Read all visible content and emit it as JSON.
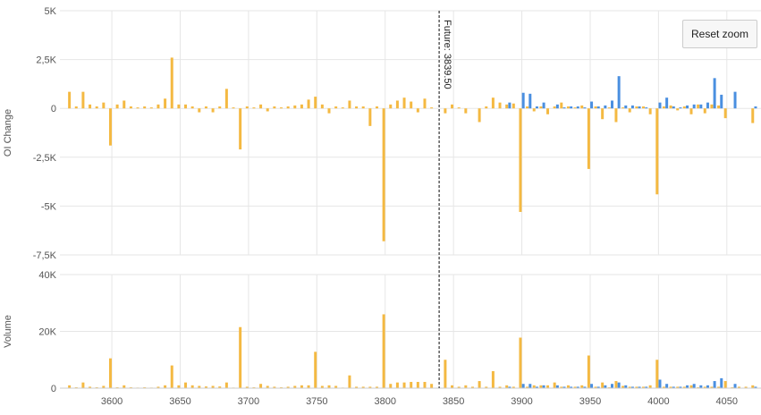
{
  "reset_zoom_label": "Reset zoom",
  "future_label": "Future: 3839.50",
  "colors": {
    "calls": "#f4b942",
    "puts": "#4a8fe0",
    "grid": "#e6e6e6",
    "marker": "#333333"
  },
  "chart_data": [
    {
      "type": "bar",
      "ylabel": "OI Change",
      "ylim": [
        -7500,
        5000
      ],
      "yticks": [
        -7500,
        -5000,
        -2500,
        0,
        2500,
        5000
      ],
      "ytick_labels": [
        "-7,5K",
        "-5K",
        "-2,5K",
        "0",
        "2,5K",
        "5K"
      ],
      "x": [
        3570,
        3575,
        3580,
        3585,
        3590,
        3595,
        3600,
        3605,
        3610,
        3615,
        3620,
        3625,
        3630,
        3635,
        3640,
        3645,
        3650,
        3655,
        3660,
        3665,
        3670,
        3675,
        3680,
        3685,
        3690,
        3695,
        3700,
        3705,
        3710,
        3715,
        3720,
        3725,
        3730,
        3735,
        3740,
        3745,
        3750,
        3755,
        3760,
        3765,
        3770,
        3775,
        3780,
        3785,
        3790,
        3795,
        3800,
        3805,
        3810,
        3815,
        3820,
        3825,
        3830,
        3835,
        3845,
        3850,
        3855,
        3860,
        3865,
        3870,
        3875,
        3880,
        3885,
        3890,
        3895,
        3900,
        3905,
        3910,
        3915,
        3920,
        3925,
        3930,
        3935,
        3940,
        3945,
        3950,
        3955,
        3960,
        3965,
        3970,
        3975,
        3980,
        3985,
        3990,
        3995,
        4000,
        4005,
        4010,
        4015,
        4020,
        4025,
        4030,
        4035,
        4040,
        4045,
        4050,
        4055,
        4060,
        4065,
        4070
      ],
      "series": [
        {
          "values": [
            850,
            100,
            850,
            200,
            100,
            300,
            -1900,
            200,
            400,
            100,
            50,
            100,
            50,
            200,
            500,
            2600,
            200,
            200,
            100,
            -200,
            100,
            -200,
            100,
            1000,
            50,
            -2100,
            100,
            50,
            200,
            -150,
            100,
            50,
            100,
            150,
            200,
            450,
            600,
            200,
            -250,
            100,
            50,
            400,
            100,
            100,
            -900,
            100,
            -6800,
            200,
            400,
            550,
            350,
            -200,
            500,
            50,
            -250,
            200,
            50,
            -250,
            0,
            -700,
            100,
            550,
            300,
            200,
            250,
            -5300,
            100,
            -150,
            100,
            -300,
            100,
            300,
            100,
            50,
            150,
            -3100,
            100,
            -550,
            50,
            -700,
            50,
            -200,
            100,
            100,
            -300,
            -4400,
            100,
            150,
            -100,
            100,
            -300,
            200,
            -250,
            200,
            150,
            -500,
            0,
            0,
            0,
            -750
          ]
        },
        {
          "values": [
            0,
            0,
            0,
            0,
            0,
            0,
            0,
            0,
            0,
            0,
            0,
            0,
            0,
            0,
            0,
            0,
            0,
            0,
            0,
            0,
            0,
            0,
            0,
            0,
            0,
            0,
            0,
            0,
            0,
            0,
            0,
            0,
            0,
            0,
            0,
            0,
            0,
            0,
            0,
            0,
            0,
            0,
            0,
            0,
            0,
            0,
            0,
            0,
            0,
            0,
            0,
            0,
            0,
            0,
            0,
            0,
            0,
            0,
            0,
            0,
            0,
            0,
            0,
            300,
            0,
            800,
            750,
            100,
            300,
            0,
            200,
            50,
            100,
            100,
            50,
            350,
            100,
            150,
            400,
            1650,
            150,
            150,
            100,
            50,
            0,
            300,
            550,
            100,
            50,
            150,
            200,
            200,
            300,
            1550,
            700,
            0,
            850,
            0,
            0,
            100
          ]
        }
      ]
    },
    {
      "type": "bar",
      "ylabel": "Volume",
      "ylim": [
        0,
        40000
      ],
      "yticks": [
        0,
        20000,
        40000
      ],
      "ytick_labels": [
        "0",
        "20K",
        "40K"
      ],
      "xticks": [
        3600,
        3650,
        3700,
        3750,
        3800,
        3850,
        3900,
        3950,
        4000,
        4050
      ],
      "xtick_labels": [
        "3600",
        "3650",
        "3700",
        "3750",
        "3800",
        "3850",
        "3900",
        "3950",
        "4000",
        "4050"
      ],
      "x": [
        3570,
        3575,
        3580,
        3585,
        3590,
        3595,
        3600,
        3605,
        3610,
        3615,
        3620,
        3625,
        3630,
        3635,
        3640,
        3645,
        3650,
        3655,
        3660,
        3665,
        3670,
        3675,
        3680,
        3685,
        3690,
        3695,
        3700,
        3705,
        3710,
        3715,
        3720,
        3725,
        3730,
        3735,
        3740,
        3745,
        3750,
        3755,
        3760,
        3765,
        3770,
        3775,
        3780,
        3785,
        3790,
        3795,
        3800,
        3805,
        3810,
        3815,
        3820,
        3825,
        3830,
        3835,
        3845,
        3850,
        3855,
        3860,
        3865,
        3870,
        3875,
        3880,
        3885,
        3890,
        3895,
        3900,
        3905,
        3910,
        3915,
        3920,
        3925,
        3930,
        3935,
        3940,
        3945,
        3950,
        3955,
        3960,
        3965,
        3970,
        3975,
        3980,
        3985,
        3990,
        3995,
        4000,
        4005,
        4010,
        4015,
        4020,
        4025,
        4030,
        4035,
        4040,
        4045,
        4050,
        4055,
        4060,
        4065,
        4070
      ],
      "series": [
        {
          "values": [
            1000,
            300,
            2000,
            500,
            300,
            800,
            10500,
            300,
            1000,
            300,
            200,
            300,
            200,
            500,
            1000,
            8000,
            1000,
            2000,
            1000,
            800,
            600,
            800,
            600,
            2000,
            200,
            21500,
            500,
            300,
            1500,
            800,
            500,
            300,
            500,
            800,
            1000,
            1000,
            12800,
            800,
            1000,
            800,
            200,
            4500,
            500,
            500,
            500,
            500,
            26000,
            1500,
            2000,
            2000,
            2200,
            2200,
            2200,
            1500,
            10000,
            1000,
            500,
            1000,
            500,
            2500,
            500,
            6000,
            500,
            1000,
            500,
            17800,
            500,
            1000,
            1000,
            1000,
            2000,
            500,
            1000,
            500,
            1000,
            11500,
            500,
            2000,
            300,
            2500,
            800,
            500,
            500,
            500,
            1000,
            10000,
            500,
            500,
            500,
            500,
            1000,
            300,
            500,
            500,
            500,
            2500,
            300,
            500,
            500,
            1000
          ]
        },
        {
          "values": [
            0,
            0,
            0,
            0,
            0,
            0,
            0,
            0,
            0,
            0,
            0,
            0,
            0,
            0,
            0,
            0,
            0,
            0,
            0,
            0,
            0,
            0,
            0,
            0,
            0,
            0,
            0,
            0,
            0,
            0,
            0,
            0,
            0,
            0,
            0,
            0,
            0,
            0,
            0,
            0,
            0,
            0,
            0,
            0,
            0,
            0,
            0,
            0,
            0,
            0,
            0,
            0,
            0,
            0,
            0,
            0,
            0,
            0,
            0,
            0,
            0,
            0,
            0,
            500,
            0,
            1500,
            1500,
            500,
            1000,
            0,
            1000,
            500,
            500,
            500,
            500,
            1500,
            500,
            1000,
            1500,
            2000,
            1000,
            500,
            500,
            500,
            0,
            3000,
            1500,
            500,
            500,
            1000,
            1500,
            1000,
            1000,
            2500,
            3500,
            0,
            1500,
            0,
            0,
            500
          ]
        }
      ]
    }
  ],
  "future_marker_x": 3839.5
}
